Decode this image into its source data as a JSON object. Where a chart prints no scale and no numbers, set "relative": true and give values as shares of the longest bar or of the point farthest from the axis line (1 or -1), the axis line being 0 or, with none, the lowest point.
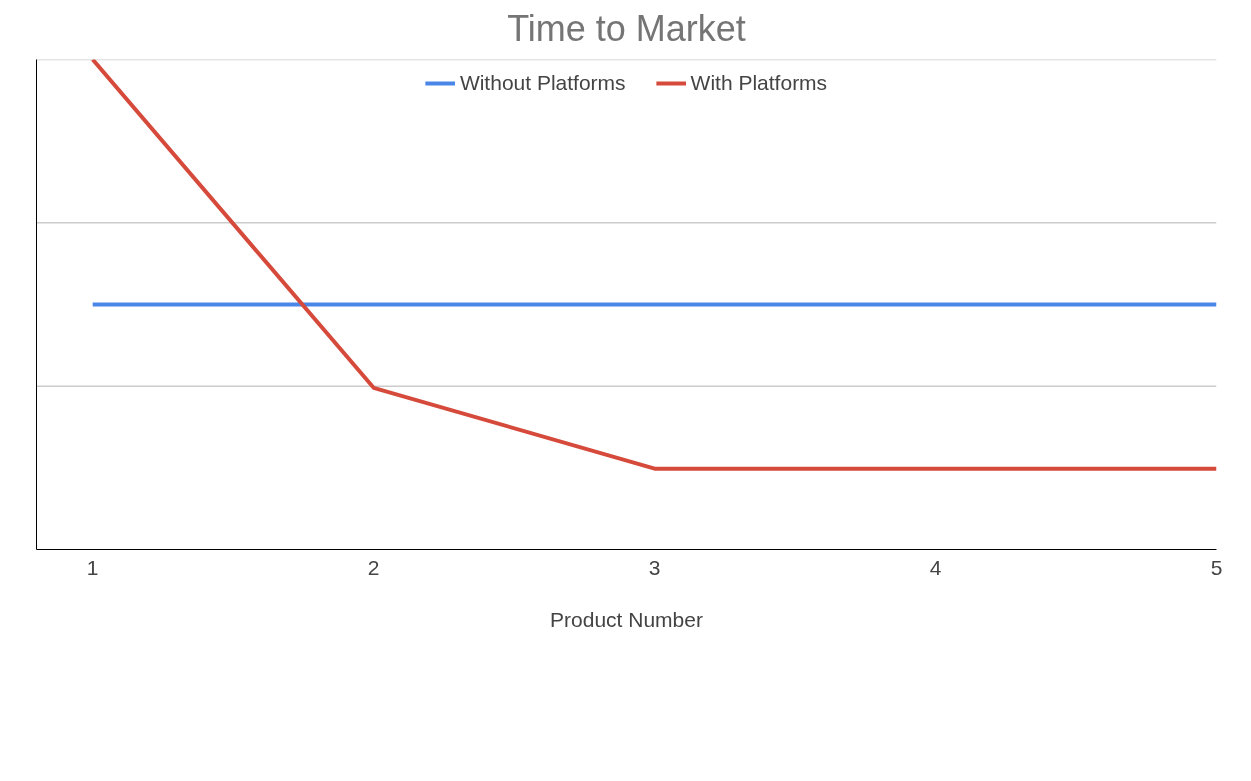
{
  "chart_data": {
    "type": "line",
    "title": "Time to Market",
    "xlabel": "Product Number",
    "relative": true,
    "x": [
      1,
      2,
      3,
      4,
      5
    ],
    "xlim": [
      0.8,
      5
    ],
    "xticks": [
      1,
      2,
      3,
      4,
      5
    ],
    "series": [
      {
        "name": "Without Platforms",
        "color": "#4a86e8",
        "values": [
          0.5,
          0.5,
          0.5,
          0.5,
          0.5
        ]
      },
      {
        "name": "With Platforms",
        "color": "#d64a3b",
        "values": [
          1,
          0.33,
          0.165,
          0.165,
          0.165
        ]
      }
    ],
    "ref_lines": [
      {
        "axis": "y",
        "value": 0.333,
        "color": "#cccccc"
      },
      {
        "axis": "y",
        "value": 0.667,
        "color": "#cccccc"
      },
      {
        "axis": "y",
        "value": 1,
        "color": "#cccccc"
      }
    ],
    "legend": "top",
    "marker": "none",
    "line_style": "solid"
  }
}
